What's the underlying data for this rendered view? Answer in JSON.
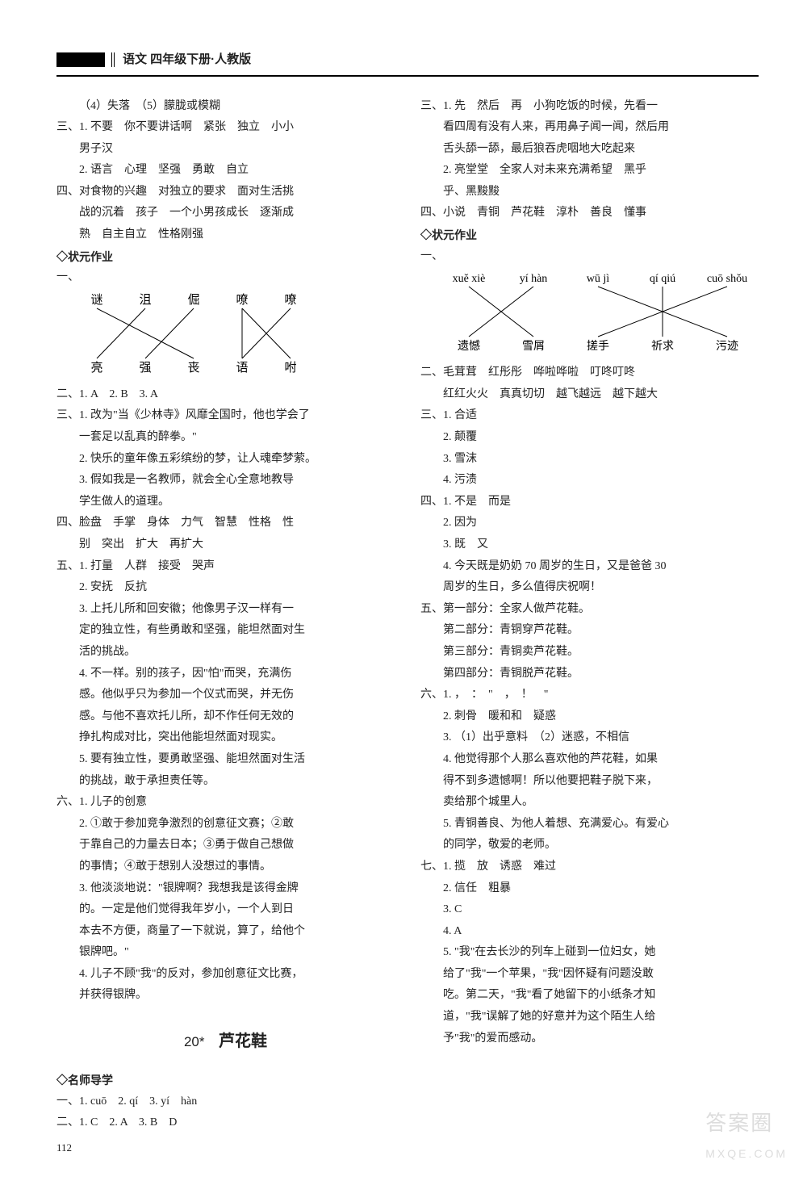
{
  "header": {
    "title": "语文 四年级下册·人教版"
  },
  "left": {
    "p1": "（4）失落　（5）朦胧或模糊",
    "p2": "三、1. 不要　你不要讲话啊　紧张　独立　小小",
    "p3": "男子汉",
    "p4": "2. 语言　心理　坚强　勇敢　自立",
    "p5": "四、对食物的兴趣　对独立的要求　面对生活挑",
    "p6": "战的沉着　孩子　一个小男孩成长　逐渐成",
    "p7": "熟　自主自立　性格刚强",
    "sec1": "◇状元作业",
    "cross1": {
      "top": [
        "谜",
        "沮",
        "倔",
        "嘹",
        "嘹"
      ],
      "bot": [
        "亮",
        "强",
        "丧",
        "语",
        "咐"
      ],
      "edges": [
        [
          0,
          2
        ],
        [
          1,
          0
        ],
        [
          2,
          1
        ],
        [
          3,
          3
        ],
        [
          3,
          4
        ],
        [
          4,
          3
        ]
      ],
      "line_color": "#000",
      "fontsize": 15
    },
    "p8": "二、1. A　2. B　3. A",
    "p9": "三、1. 改为\"当《少林寺》风靡全国时，他也学会了",
    "p10": "一套足以乱真的醉拳。\"",
    "p11": "2. 快乐的童年像五彩缤纷的梦，让人魂牵梦萦。",
    "p12": "3. 假如我是一名教师，就会全心全意地教导",
    "p13": "学生做人的道理。",
    "p14": "四、脸盘　手掌　身体　力气　智慧　性格　性",
    "p15": "别　突出　扩大　再扩大",
    "p16": "五、1. 打量　人群　接受　哭声",
    "p17": "2. 安抚　反抗",
    "p18": "3. 上托儿所和回安徽；他像男子汉一样有一",
    "p19": "定的独立性，有些勇敢和坚强，能坦然面对生",
    "p20": "活的挑战。",
    "p21": "4. 不一样。别的孩子，因\"怕\"而哭，充满伤",
    "p22": "感。他似乎只为参加一个仪式而哭，并无伤",
    "p23": "感。与他不喜欢托儿所，却不作任何无效的",
    "p24": "挣扎构成对比，突出他能坦然面对现实。",
    "p25": "5. 要有独立性，要勇敢坚强、能坦然面对生活",
    "p26": "的挑战，敢于承担责任等。",
    "p27": "六、1. 儿子的创意",
    "p28": "2. ①敢于参加竞争激烈的创意征文赛；②敢",
    "p29": "于靠自己的力量去日本；③勇于做自己想做",
    "p30": "的事情；④敢于想别人没想过的事情。",
    "p31": "3. 他淡淡地说：\"银牌啊？我想我是该得金牌",
    "p32": "的。一定是他们觉得我年岁小，一个人到日",
    "p33": "本去不方便，商量了一下就说，算了，给他个",
    "p34": "银牌吧。\"",
    "p35": "4. 儿子不顾\"我\"的反对，参加创意征文比赛，",
    "p36": "并获得银牌。",
    "chapter_num": "20*",
    "chapter_title": "芦花鞋",
    "sec2": "◇名师导学",
    "p37": "一、1. cuō　2. qí　3. yí　hàn",
    "p38": "二、1. C　2. A　3. B　D"
  },
  "right": {
    "p1": "三、1. 先　然后　再　小狗吃饭的时候，先看一",
    "p2": "看四周有没有人来，再用鼻子闻一闻，然后用",
    "p3": "舌头舔一舔，最后狼吞虎咽地大吃起来",
    "p4": "2. 亮堂堂　全家人对未来充满希望　黑乎",
    "p5": "乎、黑黢黢",
    "p6": "四、小说　青铜　芦花鞋　淳朴　善良　懂事",
    "sec1": "◇状元作业",
    "p7": "一、",
    "cross2": {
      "top": [
        "xuě xiè",
        "yí hàn",
        "wū jì",
        "qí qiú",
        "cuō shǒu"
      ],
      "bot": [
        "遗憾",
        "雪屑",
        "搓手",
        "祈求",
        "污迹"
      ],
      "edges": [
        [
          0,
          1
        ],
        [
          1,
          0
        ],
        [
          2,
          4
        ],
        [
          3,
          3
        ],
        [
          4,
          2
        ]
      ],
      "line_color": "#000",
      "fontsize": 14
    },
    "p8": "二、毛茸茸　红彤彤　哗啦哗啦　叮咚叮咚",
    "p9": "红红火火　真真切切　越飞越远　越下越大",
    "p10": "三、1. 合适",
    "p11": "2. 颠覆",
    "p12": "3. 雪沫",
    "p13": "4. 污渍",
    "p14": "四、1. 不是　而是",
    "p15": "2. 因为",
    "p16": "3. 既　又",
    "p17": "4. 今天既是奶奶 70 周岁的生日，又是爸爸 30",
    "p18": "周岁的生日，多么值得庆祝啊！",
    "p19": "五、第一部分：全家人做芦花鞋。",
    "p20": "第二部分：青铜穿芦花鞋。",
    "p21": "第三部分：青铜卖芦花鞋。",
    "p22": "第四部分：青铜脱芦花鞋。",
    "p23": "六、1. ，　：　\"　，　！　\"",
    "p24": "2. 刺骨　暖和和　疑惑",
    "p25": "3. （1）出乎意料　（2）迷惑，不相信",
    "p26": "4. 他觉得那个人那么喜欢他的芦花鞋，如果",
    "p27": "得不到多遗憾啊！所以他要把鞋子脱下来，",
    "p28": "卖给那个城里人。",
    "p29": "5. 青铜善良、为他人着想、充满爱心。有爱心",
    "p30": "的同学，敬爱的老师。",
    "p31": "七、1. 揽　放　诱惑　难过",
    "p32": "2. 信任　粗暴",
    "p33": "3. C",
    "p34": "4. A",
    "p35": "5. \"我\"在去长沙的列车上碰到一位妇女，她",
    "p36": "给了\"我\"一个苹果，\"我\"因怀疑有问题没敢",
    "p37": "吃。第二天，\"我\"看了她留下的小纸条才知",
    "p38": "道，\"我\"误解了她的好意并为这个陌生人给",
    "p39": "予\"我\"的爱而感动。"
  },
  "page_number": "112",
  "watermark": {
    "top": "答案圈",
    "bot": "MXQE.COM"
  }
}
